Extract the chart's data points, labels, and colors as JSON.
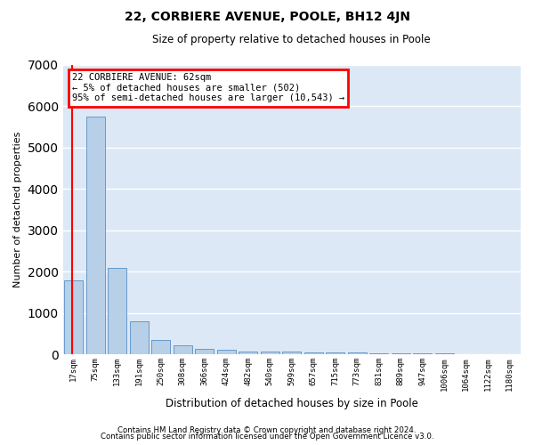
{
  "title": "22, CORBIERE AVENUE, POOLE, BH12 4JN",
  "subtitle": "Size of property relative to detached houses in Poole",
  "xlabel": "Distribution of detached houses by size in Poole",
  "ylabel": "Number of detached properties",
  "categories": [
    "17sqm",
    "75sqm",
    "133sqm",
    "191sqm",
    "250sqm",
    "308sqm",
    "366sqm",
    "424sqm",
    "482sqm",
    "540sqm",
    "599sqm",
    "657sqm",
    "715sqm",
    "773sqm",
    "831sqm",
    "889sqm",
    "947sqm",
    "1006sqm",
    "1064sqm",
    "1122sqm",
    "1180sqm"
  ],
  "values": [
    1780,
    5750,
    2080,
    800,
    350,
    230,
    140,
    110,
    80,
    65,
    60,
    55,
    50,
    40,
    30,
    25,
    20,
    18,
    15,
    12,
    10
  ],
  "bar_color": "#b8cfe8",
  "bar_edge_color": "#6699cc",
  "annotation_text": "22 CORBIERE AVENUE: 62sqm\n← 5% of detached houses are smaller (502)\n95% of semi-detached houses are larger (10,543) →",
  "annotation_box_color": "white",
  "annotation_box_edge_color": "red",
  "vline_color": "red",
  "ylim": [
    0,
    7000
  ],
  "background_color": "#dce8f5",
  "grid_color": "white",
  "footer_line1": "Contains HM Land Registry data © Crown copyright and database right 2024.",
  "footer_line2": "Contains public sector information licensed under the Open Government Licence v3.0."
}
